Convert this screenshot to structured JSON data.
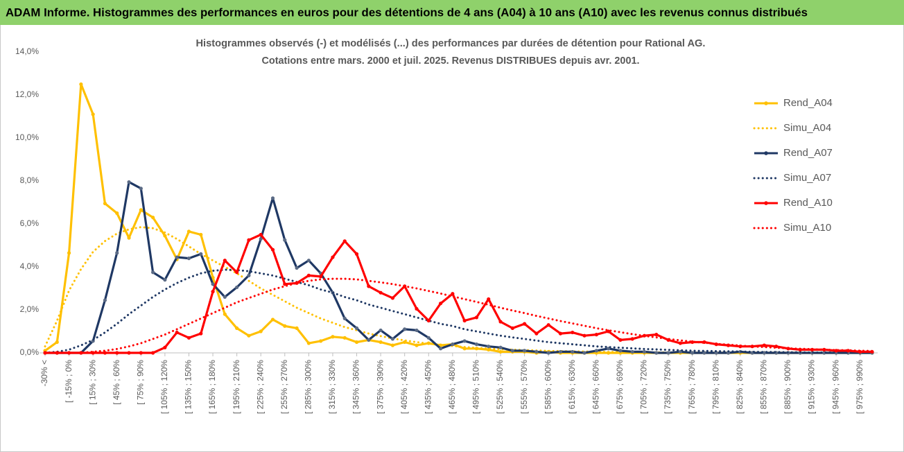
{
  "header": {
    "title": "ADAM Informe. Histogrammes des performances en euros pour des détentions de 4 ans (A04) à 10 ans (A10) avec les revenus connus distribués"
  },
  "chart_data": {
    "type": "line",
    "title": "Histogrammes observés (-) et modélisés (...) des performances par durées de détention pour Rational AG.",
    "subtitle": "Cotations entre mars. 2000 et juil. 2025. Revenus DISTRIBUES depuis avr. 2001.",
    "categories": [
      "-30% <",
      null,
      "[ -15% ; 0%",
      null,
      "[ 15% ; 30%",
      null,
      "[ 45% ; 60%",
      null,
      "[ 75% ; 90%",
      null,
      "[ 105% ; 120%",
      null,
      "[ 135% ; 150%",
      null,
      "[ 165% ; 180%",
      null,
      "[ 195% ; 210%",
      null,
      "[ 225% ; 240%",
      null,
      "[ 255% ; 270%",
      null,
      "[ 285% ; 300%",
      null,
      "[ 315% ; 330%",
      null,
      "[ 345% ; 360%",
      null,
      "[ 375% ; 390%",
      null,
      "[ 405% ; 420%",
      null,
      "[ 435% ; 450%",
      null,
      "[ 465% ; 480%",
      null,
      "[ 495% ; 510%",
      null,
      "[ 525% ; 540%",
      null,
      "[ 555% ; 570%",
      null,
      "[ 585% ; 600%",
      null,
      "[ 615% ; 630%",
      null,
      "[ 645% ; 660%",
      null,
      "[ 675% ; 690%",
      null,
      "[ 705% ; 720%",
      null,
      "[ 735% ; 750%",
      null,
      "[ 765% ; 780%",
      null,
      "[ 795% ; 810%",
      null,
      "[ 825% ; 840%",
      null,
      "[ 855% ; 870%",
      null,
      "[ 885% ; 900%",
      null,
      "[ 915% ; 930%",
      null,
      "[ 945% ; 960%",
      null,
      "[ 975% ; 990%",
      null
    ],
    "series": [
      {
        "name": "Rend_A04",
        "color": "#ffc000",
        "style": "solid",
        "markers": true,
        "values": [
          0.1,
          0.5,
          4.65,
          12.5,
          11.1,
          6.95,
          6.5,
          5.35,
          6.65,
          6.3,
          5.45,
          4.35,
          5.65,
          5.5,
          3.5,
          1.8,
          1.15,
          0.8,
          1.0,
          1.55,
          1.25,
          1.15,
          0.45,
          0.55,
          0.75,
          0.7,
          0.5,
          0.6,
          0.5,
          0.35,
          0.5,
          0.35,
          0.45,
          0.35,
          0.4,
          0.2,
          0.2,
          0.15,
          0.05,
          0.05,
          0.05,
          0,
          0.05,
          0,
          0,
          0,
          0,
          0,
          0,
          0,
          0,
          0,
          0,
          0,
          0,
          0,
          0,
          0,
          0,
          0,
          0,
          0,
          0,
          0,
          0,
          0,
          0,
          0,
          0,
          0
        ]
      },
      {
        "name": "Simu_A04",
        "color": "#ffc000",
        "style": "dotted",
        "markers": false,
        "values": [
          0.3,
          1.5,
          2.9,
          3.9,
          4.7,
          5.2,
          5.55,
          5.75,
          5.85,
          5.8,
          5.6,
          5.3,
          4.95,
          4.6,
          4.3,
          4.0,
          3.7,
          3.35,
          3.0,
          2.7,
          2.4,
          2.1,
          1.85,
          1.6,
          1.4,
          1.2,
          1.05,
          0.9,
          0.78,
          0.67,
          0.58,
          0.5,
          0.43,
          0.37,
          0.32,
          0.27,
          0.23,
          0.2,
          0.17,
          0.15,
          0.13,
          0.11,
          0.09,
          0.08,
          0.07,
          0.06,
          0.05,
          0.04,
          0.04,
          0.03,
          0.03,
          0.02,
          0.02,
          0.02,
          0.01,
          0.01,
          0.01,
          0.01,
          0.01,
          0.01,
          0.01,
          0,
          0,
          0,
          0,
          0,
          0,
          0,
          0,
          0
        ]
      },
      {
        "name": "Rend_A07",
        "color": "#1f3864",
        "style": "solid",
        "markers": true,
        "values": [
          0,
          0,
          0,
          0,
          0.55,
          2.45,
          4.65,
          7.95,
          7.65,
          3.75,
          3.4,
          4.45,
          4.4,
          4.6,
          3.2,
          2.6,
          3.05,
          3.6,
          5.3,
          7.2,
          5.25,
          3.95,
          4.3,
          3.7,
          2.8,
          1.6,
          1.15,
          0.6,
          1.05,
          0.65,
          1.1,
          1.05,
          0.7,
          0.2,
          0.4,
          0.55,
          0.4,
          0.3,
          0.25,
          0.1,
          0.1,
          0.05,
          0,
          0.05,
          0.05,
          0,
          0.1,
          0.2,
          0.1,
          0.05,
          0.05,
          0,
          0,
          0.05,
          0,
          0,
          0,
          0,
          0.05,
          0,
          0,
          0,
          0,
          0,
          0,
          0,
          0,
          0,
          0,
          0
        ]
      },
      {
        "name": "Simu_A07",
        "color": "#1f3864",
        "style": "dotted",
        "markers": false,
        "values": [
          0,
          0.05,
          0.15,
          0.35,
          0.6,
          0.95,
          1.35,
          1.8,
          2.2,
          2.6,
          2.95,
          3.25,
          3.5,
          3.7,
          3.82,
          3.87,
          3.85,
          3.8,
          3.7,
          3.6,
          3.45,
          3.3,
          3.15,
          2.95,
          2.8,
          2.6,
          2.45,
          2.25,
          2.1,
          1.95,
          1.8,
          1.65,
          1.5,
          1.35,
          1.25,
          1.1,
          1.0,
          0.9,
          0.8,
          0.72,
          0.65,
          0.57,
          0.5,
          0.45,
          0.4,
          0.35,
          0.3,
          0.27,
          0.24,
          0.21,
          0.18,
          0.16,
          0.14,
          0.12,
          0.1,
          0.09,
          0.08,
          0.07,
          0.06,
          0.05,
          0.04,
          0.04,
          0.03,
          0.03,
          0.02,
          0.02,
          0.02,
          0.01,
          0.01,
          0.01
        ]
      },
      {
        "name": "Rend_A10",
        "color": "#ff0000",
        "style": "solid",
        "markers": true,
        "values": [
          0,
          0,
          0,
          0,
          0,
          0,
          0,
          0,
          0,
          0,
          0.25,
          0.95,
          0.7,
          0.9,
          2.85,
          4.3,
          3.75,
          5.25,
          5.5,
          4.8,
          3.2,
          3.25,
          3.6,
          3.55,
          4.45,
          5.2,
          4.6,
          3.1,
          2.8,
          2.55,
          3.1,
          2.05,
          1.5,
          2.3,
          2.75,
          1.5,
          1.65,
          2.5,
          1.45,
          1.15,
          1.35,
          0.9,
          1.3,
          0.9,
          0.95,
          0.8,
          0.85,
          1.0,
          0.6,
          0.65,
          0.8,
          0.85,
          0.6,
          0.45,
          0.5,
          0.5,
          0.4,
          0.35,
          0.3,
          0.3,
          0.35,
          0.3,
          0.2,
          0.15,
          0.15,
          0.15,
          0.1,
          0.1,
          0.05,
          0.05
        ]
      },
      {
        "name": "Simu_A10",
        "color": "#ff0000",
        "style": "dotted",
        "markers": false,
        "values": [
          0,
          0,
          0,
          0,
          0.05,
          0.1,
          0.18,
          0.3,
          0.45,
          0.65,
          0.85,
          1.1,
          1.35,
          1.6,
          1.85,
          2.1,
          2.35,
          2.55,
          2.75,
          2.95,
          3.1,
          3.25,
          3.35,
          3.42,
          3.45,
          3.45,
          3.42,
          3.35,
          3.28,
          3.2,
          3.1,
          3.0,
          2.88,
          2.76,
          2.63,
          2.5,
          2.37,
          2.24,
          2.1,
          1.97,
          1.85,
          1.72,
          1.6,
          1.48,
          1.37,
          1.26,
          1.15,
          1.05,
          0.96,
          0.87,
          0.79,
          0.72,
          0.65,
          0.58,
          0.52,
          0.47,
          0.42,
          0.38,
          0.34,
          0.3,
          0.27,
          0.24,
          0.21,
          0.19,
          0.17,
          0.15,
          0.13,
          0.12,
          0.1,
          0.09
        ]
      }
    ],
    "ylim": [
      0,
      14
    ],
    "yticks": [
      {
        "value": 0,
        "label": "0,0%"
      },
      {
        "value": 2,
        "label": "2,0%"
      },
      {
        "value": 4,
        "label": "4,0%"
      },
      {
        "value": 6,
        "label": "6,0%"
      },
      {
        "value": 8,
        "label": "8,0%"
      },
      {
        "value": 10,
        "label": "10,0%"
      },
      {
        "value": 12,
        "label": "12,0%"
      },
      {
        "value": 14,
        "label": "14,0%"
      }
    ],
    "grid": false,
    "legend": "right"
  }
}
